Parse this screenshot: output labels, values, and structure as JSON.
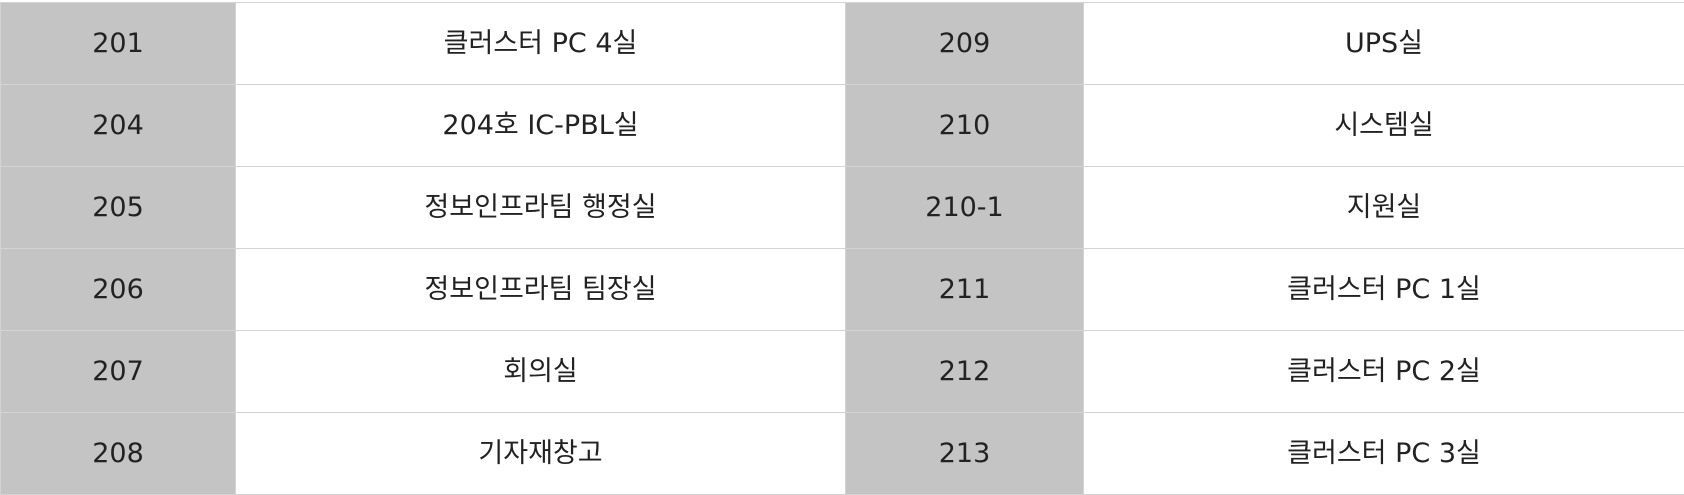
{
  "rooms": [
    [
      {
        "number": "201",
        "name": "클러스터 PC 4실"
      },
      {
        "number": "209",
        "name": "UPS실"
      }
    ],
    [
      {
        "number": "204",
        "name": "204호 IC-PBL실"
      },
      {
        "number": "210",
        "name": "시스템실"
      }
    ],
    [
      {
        "number": "205",
        "name": "정보인프라팀 행정실"
      },
      {
        "number": "210-1",
        "name": "지원실"
      }
    ],
    [
      {
        "number": "206",
        "name": "정보인프라팀 팀장실"
      },
      {
        "number": "211",
        "name": "클러스터 PC 1실"
      }
    ],
    [
      {
        "number": "207",
        "name": "회의실"
      },
      {
        "number": "212",
        "name": "클러스터 PC 2실"
      }
    ],
    [
      {
        "number": "208",
        "name": "기자재창고"
      },
      {
        "number": "213",
        "name": "클러스터 PC 3실"
      }
    ]
  ],
  "colors": {
    "number_cell_bg": "#c4c4c4",
    "name_cell_bg": "#ffffff",
    "border": "#d3d3d3",
    "text": "#222222"
  }
}
